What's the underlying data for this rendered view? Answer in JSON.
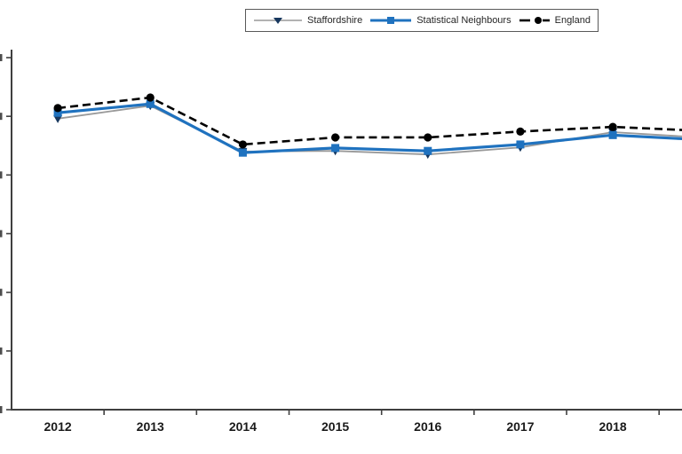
{
  "chart_data": {
    "type": "line",
    "title": "",
    "xlabel": "",
    "ylabel": "",
    "categories": [
      "2012",
      "2013",
      "2014",
      "2015",
      "2016",
      "2017",
      "2018"
    ],
    "series": [
      {
        "name": "Staffordshire",
        "color": "#999999",
        "marker": "triangle-down",
        "marker_color": "#17375e",
        "line_style": "solid",
        "values": [
          4.96,
          5.18,
          4.4,
          4.41,
          4.35,
          4.47,
          4.73
        ],
        "value_at_right_clip": 4.65
      },
      {
        "name": "Statistical Neighbours",
        "color": "#1f72bf",
        "marker": "square",
        "marker_color": "#1f72bf",
        "line_style": "solid",
        "values": [
          5.06,
          5.21,
          4.38,
          4.46,
          4.41,
          4.52,
          4.68
        ],
        "value_at_right_clip": 4.61
      },
      {
        "name": "England",
        "color": "#000000",
        "marker": "circle",
        "marker_color": "#000000",
        "line_style": "dashed",
        "values": [
          5.14,
          5.32,
          4.52,
          4.64,
          4.64,
          4.74,
          4.82
        ],
        "value_at_right_clip": 4.76
      }
    ],
    "y_axis": {
      "tick_count": 7,
      "min_tick_units": 0,
      "max_tick_units": 6,
      "tick_labels_visible": false,
      "note": "y-axis numeric labels are cropped off the left edge of the image; series values are expressed in tick units (0 = bottom tick / x-axis, 6 = top tick)"
    },
    "x_axis": {
      "tick_labels": [
        "2012",
        "2013",
        "2014",
        "2015",
        "2016",
        "2017",
        "2018"
      ],
      "labels_bold": true,
      "continues_past_right_edge": true
    },
    "legend_position": "top-center-boxed"
  },
  "colors": {
    "axis": "#3f3f3f",
    "legend_border": "#595959",
    "year_label": "#1a1a1a"
  }
}
